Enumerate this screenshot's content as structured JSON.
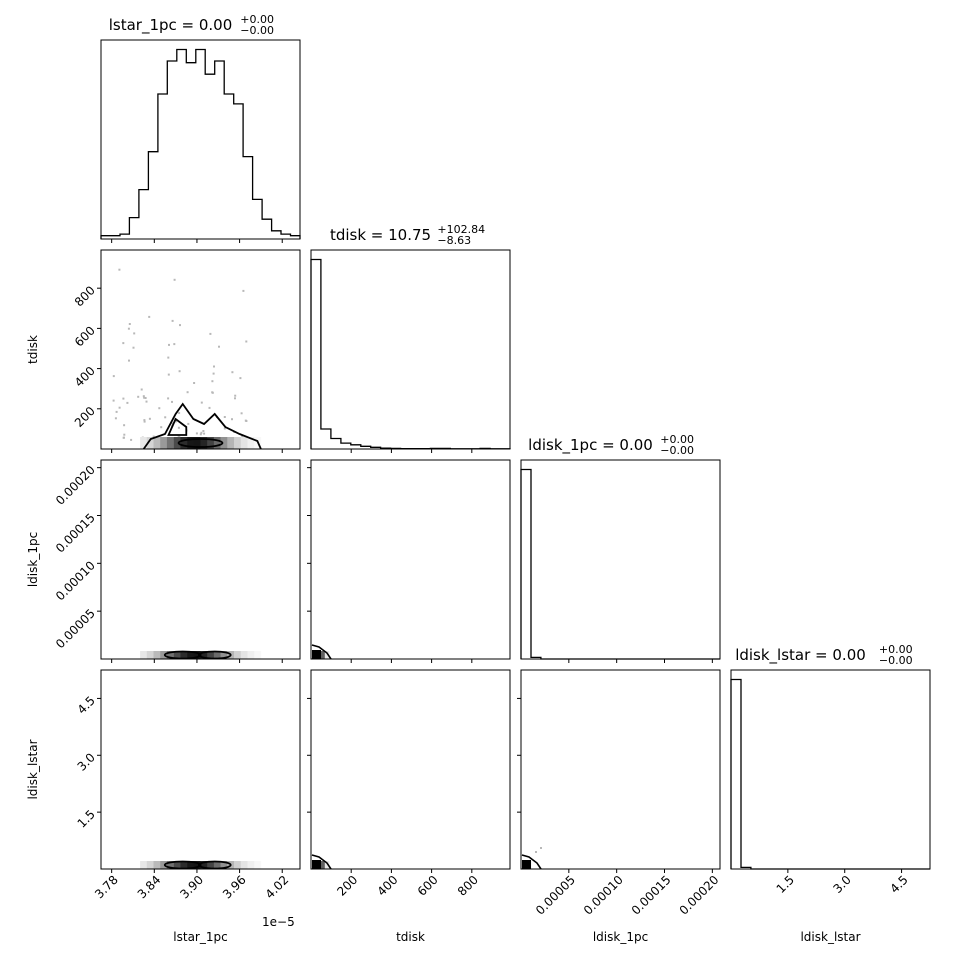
{
  "chart_data": {
    "type": "corner",
    "parameters": [
      "lstar_1pc",
      "tdisk",
      "ldisk_1pc",
      "ldisk_lstar"
    ],
    "titles": [
      {
        "param": "lstar_1pc",
        "text": "lstar_1pc = 0.00",
        "sup": "+0.00",
        "sub": "−0.00"
      },
      {
        "param": "tdisk",
        "text": "tdisk = 10.75",
        "sup": "+102.84",
        "sub": "−8.63"
      },
      {
        "param": "ldisk_1pc",
        "text": "ldisk_1pc = 0.00",
        "sup": "+0.00",
        "sub": "−0.00"
      },
      {
        "param": "ldisk_lstar",
        "text": "ldisk_lstar = 0.00",
        "sup": "+0.00",
        "sub": "−0.00"
      }
    ],
    "axis_labels": [
      "lstar_1pc",
      "tdisk",
      "ldisk_1pc",
      "ldisk_lstar"
    ],
    "offset_text": "1e−5",
    "ranges": [
      [
        3.765,
        4.045
      ],
      [
        0,
        990
      ],
      [
        0,
        0.000208
      ],
      [
        0,
        5.25
      ]
    ],
    "ticks": [
      {
        "values": [
          3.78,
          3.84,
          3.9,
          3.96,
          4.02
        ],
        "labels": [
          "3.78",
          "3.84",
          "3.90",
          "3.96",
          "4.02"
        ]
      },
      {
        "values": [
          200,
          400,
          600,
          800
        ],
        "labels": [
          "200",
          "400",
          "600",
          "800"
        ]
      },
      {
        "values": [
          5e-05,
          0.0001,
          0.00015,
          0.0002
        ],
        "labels": [
          "0.00005",
          "0.00010",
          "0.00015",
          "0.00020"
        ]
      },
      {
        "values": [
          1.5,
          3.0,
          4.5
        ],
        "labels": [
          "1.5",
          "3.0",
          "4.5"
        ]
      }
    ],
    "histograms": [
      {
        "param": "lstar_1pc",
        "counts": [
          2,
          2,
          3,
          13,
          30,
          53,
          88,
          108,
          115,
          107,
          115,
          100,
          108,
          88,
          82,
          50,
          24,
          12,
          5,
          3,
          2
        ]
      },
      {
        "param": "tdisk",
        "counts": [
          900,
          95,
          50,
          28,
          20,
          13,
          8,
          4,
          3,
          2,
          2,
          2,
          3,
          3,
          1,
          1,
          1,
          3,
          1,
          1
        ]
      },
      {
        "param": "ldisk_1pc",
        "counts": [
          950,
          8,
          0,
          0,
          0,
          0,
          0,
          0,
          0,
          0,
          0,
          0,
          0,
          0,
          0,
          0,
          0,
          0,
          0,
          0
        ]
      },
      {
        "param": "ldisk_lstar",
        "counts": [
          920,
          8,
          0,
          0,
          0,
          0,
          0,
          0,
          0,
          0,
          0,
          0,
          0,
          0,
          0,
          0,
          0,
          0,
          0,
          0
        ]
      }
    ],
    "grid": false
  }
}
